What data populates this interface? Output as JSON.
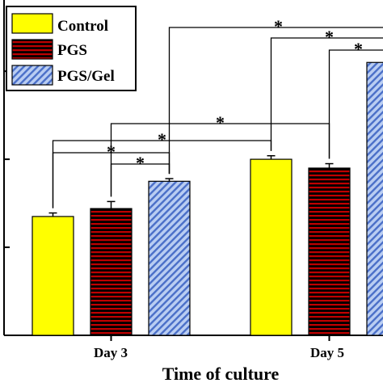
{
  "chart_data": {
    "type": "bar",
    "xlabel": "Time of culture",
    "ylabel": "",
    "categories": [
      "Day 3",
      "Day 5"
    ],
    "series": [
      {
        "name": "Control",
        "values": [
          1.35,
          2.0
        ],
        "errors": [
          0.04,
          0.04
        ],
        "color": "#ffff00",
        "pattern": "solid"
      },
      {
        "name": "PGS",
        "values": [
          1.44,
          1.9
        ],
        "errors": [
          0.08,
          0.05
        ],
        "color": "#c00000",
        "pattern": "horizontal-stripes"
      },
      {
        "name": "PGS/Gel",
        "values": [
          1.75,
          3.1
        ],
        "errors": [
          0.03,
          0.05
        ],
        "color": "#6a8fd8",
        "pattern": "diagonal-hatch"
      }
    ],
    "ylim": [
      0,
      3.8
    ],
    "legend_position": "top-left",
    "grid": false,
    "significance_marker": "*"
  }
}
